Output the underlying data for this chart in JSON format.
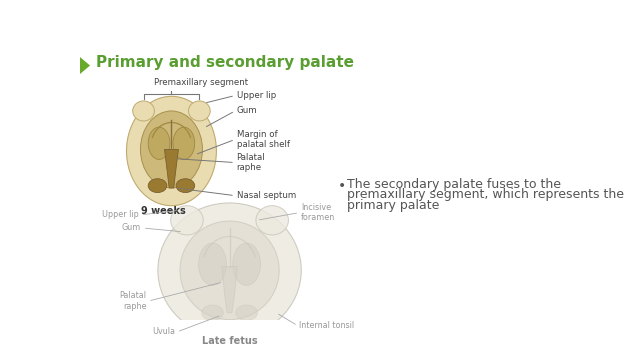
{
  "title": "Primary and secondary palate",
  "title_color": "#5a9e32",
  "title_fontsize": 11,
  "background_color": "#ffffff",
  "bullet_text": [
    "The secondary palate fuses to the",
    "premaxillary segment, which represents the",
    "primary palate"
  ],
  "bullet_color": "#555555",
  "bullet_fontsize": 9,
  "left_arrow_color": "#6aaa2a",
  "label_9weeks": "9 weeks",
  "label_late_fetus": "Late fetus",
  "anat_outer": "#e8dcb0",
  "anat_inner": "#cdb97a",
  "anat_dark": "#9a7a30",
  "anat_gum": "#d4c480",
  "ghost_outer": "#ece9df",
  "ghost_inner": "#e0dcd0",
  "ghost_dark": "#d5d0c5",
  "ghost_edge": "#c8c4b8"
}
